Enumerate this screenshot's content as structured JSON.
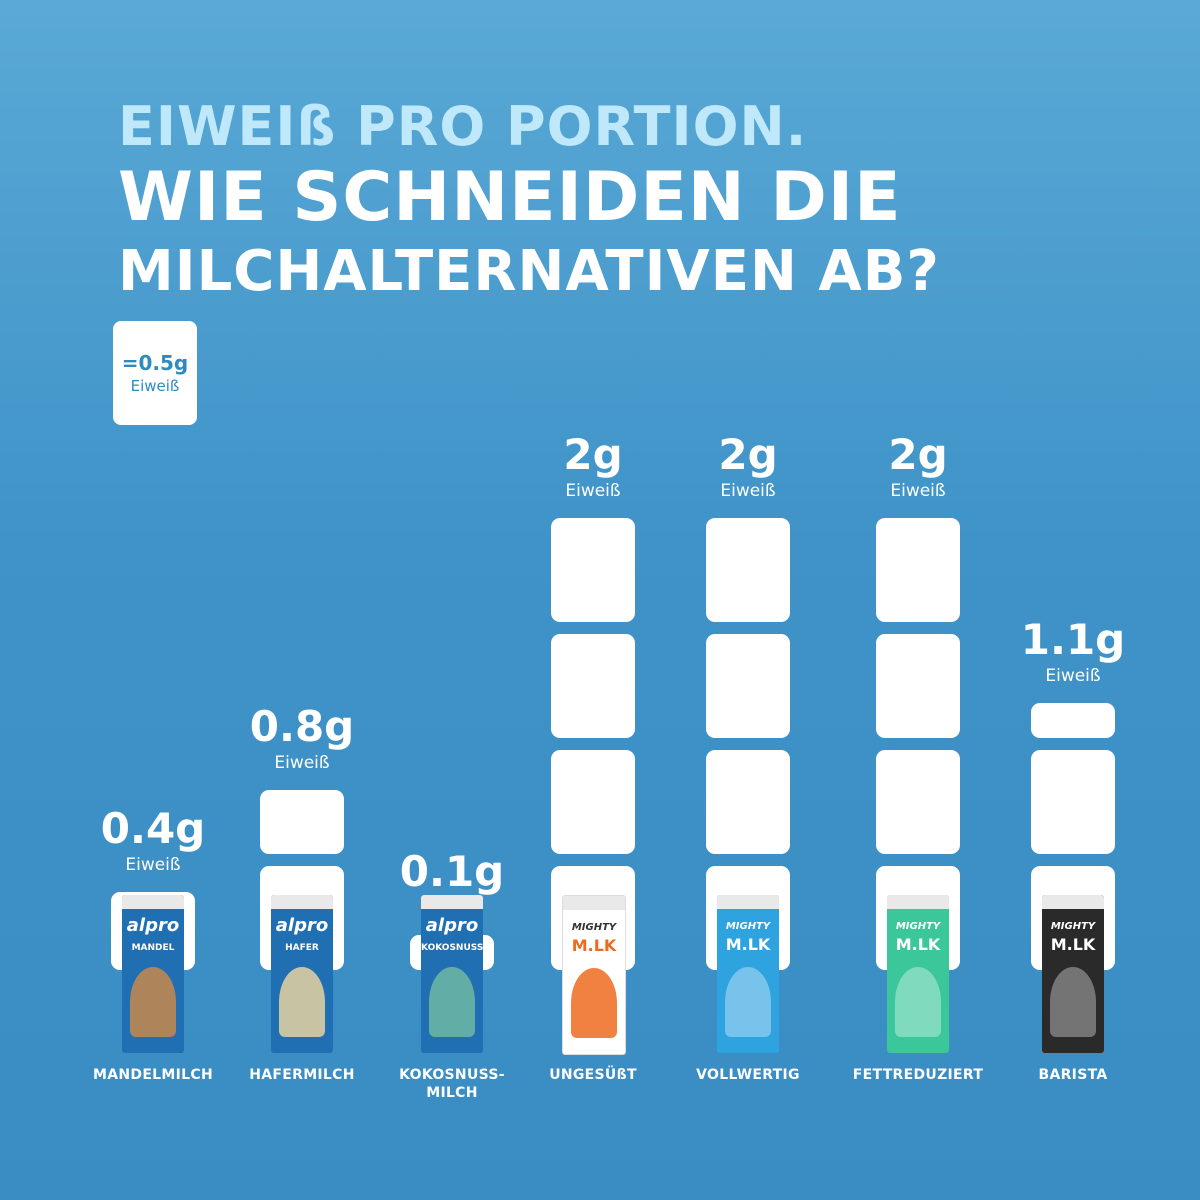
{
  "header": {
    "line1": "EIWEIß PRO PORTION.",
    "line2": "WIE SCHNEIDEN DIE",
    "line3": "MILCHALTERNATIVEN AB?"
  },
  "legend": {
    "value": "=0.5g",
    "unit": "Eiweiß"
  },
  "chart_data": {
    "type": "bar",
    "categories": [
      "MANDELMILCH",
      "HAFERMILCH",
      "KOKOSNUSS-MILCH",
      "UNGESÜßT",
      "VOLLWERTIG",
      "FETTREDUZIERT",
      "BARISTA"
    ],
    "values": [
      0.4,
      0.8,
      0.1,
      2,
      2,
      2,
      1.1
    ],
    "value_labels": [
      "0.4g",
      "0.8g",
      "0.1g",
      "2g",
      "2g",
      "2g",
      "1.1g"
    ],
    "unit_label": "Eiweiß",
    "block_value": 0.5,
    "products": [
      {
        "brand": "alpro",
        "name": "MANDEL"
      },
      {
        "brand": "alpro",
        "name": "HAFER"
      },
      {
        "brand": "alpro",
        "name": "KOKOSNUSS"
      },
      {
        "brand": "MIGHTY",
        "name": "M.LK"
      },
      {
        "brand": "MIGHTY",
        "name": "M.LK"
      },
      {
        "brand": "MIGHTY",
        "name": "M.LK"
      },
      {
        "brand": "MIGHTY",
        "name": "M.LK"
      }
    ],
    "carton_colors": [
      "#1f6fb2",
      "#1f6fb2",
      "#1f6fb2",
      "#ffffff",
      "#2ea3e0",
      "#3cc79a",
      "#2a2a2a"
    ],
    "accent_colors": [
      "#c8894a",
      "#e6d3a0",
      "#6fb9a3",
      "#ef6b1f",
      "#ffffff",
      "#ffffff",
      "#ffffff"
    ]
  }
}
